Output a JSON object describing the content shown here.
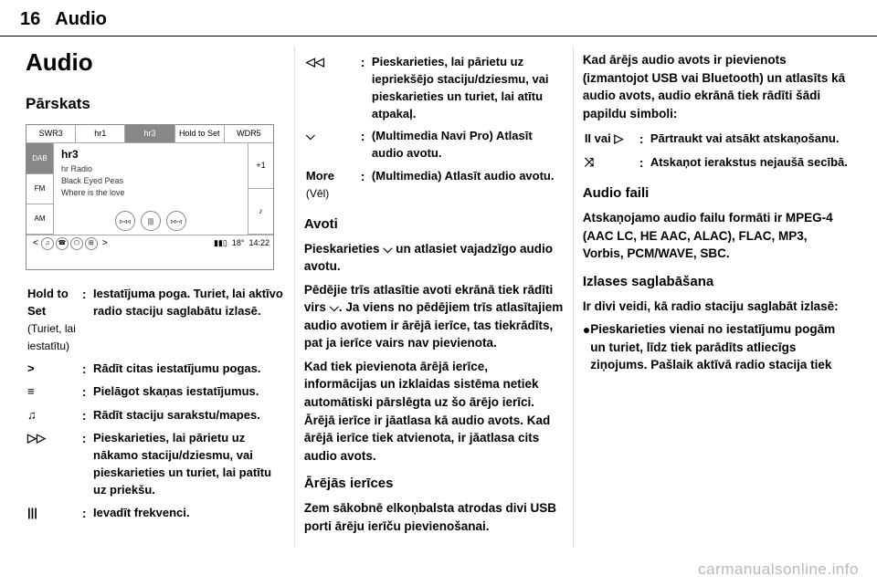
{
  "header": {
    "page_number": "16",
    "section": "Audio"
  },
  "col1": {
    "title": "Audio",
    "subtitle": "Pārskats",
    "screenshot": {
      "presets": [
        "SWR3",
        "hr1",
        "hr3",
        "Hold to Set",
        "WDR5"
      ],
      "selected_preset_index": 2,
      "bands": [
        "DAB",
        "FM",
        "AM"
      ],
      "selected_band_index": 0,
      "station": "hr3",
      "line2": "hr Radio",
      "line3": "Black Eyed Peas",
      "line4": "Where is the love",
      "right_icons": [
        "+1",
        "♪"
      ],
      "controls": [
        "▹◃◃",
        "|||",
        "▹▹◃"
      ],
      "bottom_icons": [
        "♫",
        "☎",
        "⬡",
        "⊞"
      ],
      "temp": "18°",
      "time": "14:22",
      "chevron": ">"
    },
    "defs": [
      {
        "term": "Hold to Set",
        "subterm": "(Turiet, lai iestatītu)",
        "desc": "Iestatījuma poga. Turiet, lai aktīvo radio staciju saglabātu izlasē."
      },
      {
        "term": ">",
        "desc": "Rādīt citas iestatījumu pogas."
      },
      {
        "term": "≡",
        "desc": "Pielāgot skaņas iestatījumus."
      },
      {
        "term": "♫",
        "desc": "Rādīt staciju sarakstu/mapes."
      },
      {
        "term": "▷▷",
        "desc": "Pieskarieties, lai pārietu uz nākamo staciju/dziesmu, vai pieskarieties un turiet, lai patītu uz priekšu."
      },
      {
        "term": "|||",
        "desc": "Ievadīt frekvenci."
      }
    ]
  },
  "col2": {
    "defs": [
      {
        "term": "◁◁",
        "desc": "Pieskarieties, lai pārietu uz iepriekšējo staciju/dziesmu, vai pieskarieties un turiet, lai atītu atpakaļ."
      },
      {
        "term": "⌵",
        "desc": "(Multimedia Navi Pro) Atlasīt audio avotu."
      },
      {
        "term": "More",
        "subterm": "(Vēl)",
        "desc": "(Multimedia) Atlasīt audio avotu."
      }
    ],
    "h_avoti": "Avoti",
    "p1": "Pieskarieties ⌵ un atlasiet vajadzīgo audio avotu.",
    "p2": "Pēdējie trīs atlasītie avoti ekrānā tiek rādīti virs ⌵. Ja viens no pēdējiem trīs atlasītajiem audio avotiem ir ārējā ierīce, tas tiekrādīts, pat ja ierīce vairs nav pievienota.",
    "p3": "Kad tiek pievienota ārējā ierīce, informācijas un izklaidas sistēma netiek automātiski pārslēgta uz šo ārējo ierīci. Ārējā ierīce ir jāatlasa kā audio avots. Kad ārējā ierīce tiek atvienota, ir jāatlasa cits audio avots.",
    "h_arejas": "Ārējās ierīces",
    "p4": "Zem sākobnē elkoņbalsta atrodas divi USB porti ārēju ierīču pievienošanai."
  },
  "col3": {
    "p1": "Kad ārējs audio avots ir pievienots (izmantojot USB vai Bluetooth) un atlasīts kā audio avots, audio ekrānā tiek rādīti šādi papildu simboli:",
    "defs": [
      {
        "term": "II vai ▷",
        "desc": "Pārtraukt vai atsākt atskaņošanu."
      },
      {
        "term": "⤨",
        "desc": "Atskaņot ierakstus nejaušā secībā."
      }
    ],
    "h_faili": "Audio faili",
    "p2": "Atskaņojamo audio failu formāti ir MPEG-4 (AAC LC, HE AAC, ALAC), FLAC, MP3, Vorbis, PCM/WAVE, SBC.",
    "h_izlase": "Izlases saglabāšana",
    "p3": "Ir divi veidi, kā radio staciju saglabāt izlasē:",
    "bullet": "Pieskarieties vienai no iestatījumu pogām un turiet, līdz tiek parādīts atliecīgs ziņojums. Pašlaik aktīvā radio stacija tiek"
  },
  "footer": "carmanualsonline.info"
}
